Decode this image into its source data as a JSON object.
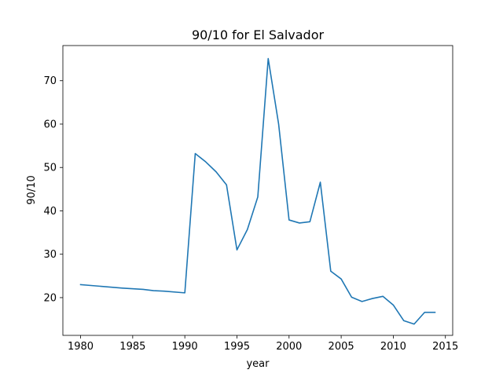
{
  "chart_data": {
    "type": "line",
    "title": "90/10 for El Salvador",
    "xlabel": "year",
    "ylabel": "90/10",
    "xlim": [
      1978.3,
      2015.7
    ],
    "ylim": [
      11.3,
      78.1
    ],
    "xticks": [
      1980,
      1985,
      1990,
      1995,
      2000,
      2005,
      2010,
      2015
    ],
    "yticks": [
      20,
      30,
      40,
      50,
      60,
      70
    ],
    "grid": false,
    "line_color": "#1f77b4",
    "series": [
      {
        "x": [
          1980,
          1984,
          1986,
          1987,
          1988,
          1990,
          1991,
          1992,
          1993,
          1994,
          1995,
          1996,
          1997,
          1998,
          1999,
          2000,
          2001,
          2002,
          2003,
          2004,
          2005,
          2006,
          2007,
          2008,
          2009,
          2010,
          2011,
          2012,
          2013,
          2014
        ],
        "values": [
          23.0,
          22.2,
          21.9,
          21.6,
          21.5,
          21.1,
          53.2,
          51.3,
          49.0,
          46.0,
          31.0,
          35.7,
          43.2,
          75.1,
          60.0,
          37.9,
          37.2,
          37.5,
          46.6,
          26.1,
          24.3,
          20.1,
          19.1,
          19.8,
          20.3,
          18.3,
          14.7,
          13.9,
          16.6,
          16.6
        ]
      }
    ]
  }
}
